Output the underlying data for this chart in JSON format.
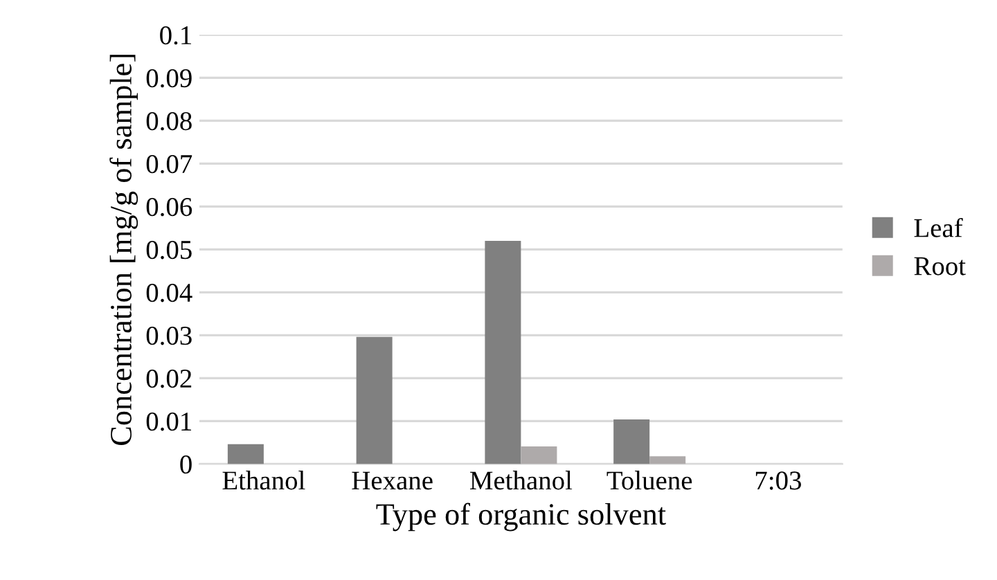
{
  "chart_data": {
    "type": "bar",
    "xlabel": "Type of organic solvent",
    "ylabel": "Concentration [mg/g of sample]",
    "categories": [
      "Ethanol",
      "Hexane",
      "Methanol",
      "Toluene",
      "7:03"
    ],
    "series": [
      {
        "name": "Leaf",
        "color": "#808080",
        "values": [
          0.0046,
          0.0296,
          0.052,
          0.0104,
          null
        ]
      },
      {
        "name": "Root",
        "color": "#aeaaaa",
        "values": [
          null,
          null,
          0.0041,
          0.0018,
          null
        ]
      }
    ],
    "ylim": [
      0,
      0.1
    ],
    "yticks": [
      0,
      0.01,
      0.02,
      0.03,
      0.04,
      0.05,
      0.06,
      0.07,
      0.08,
      0.09,
      0.1
    ],
    "grid": "y",
    "legend": "right"
  }
}
